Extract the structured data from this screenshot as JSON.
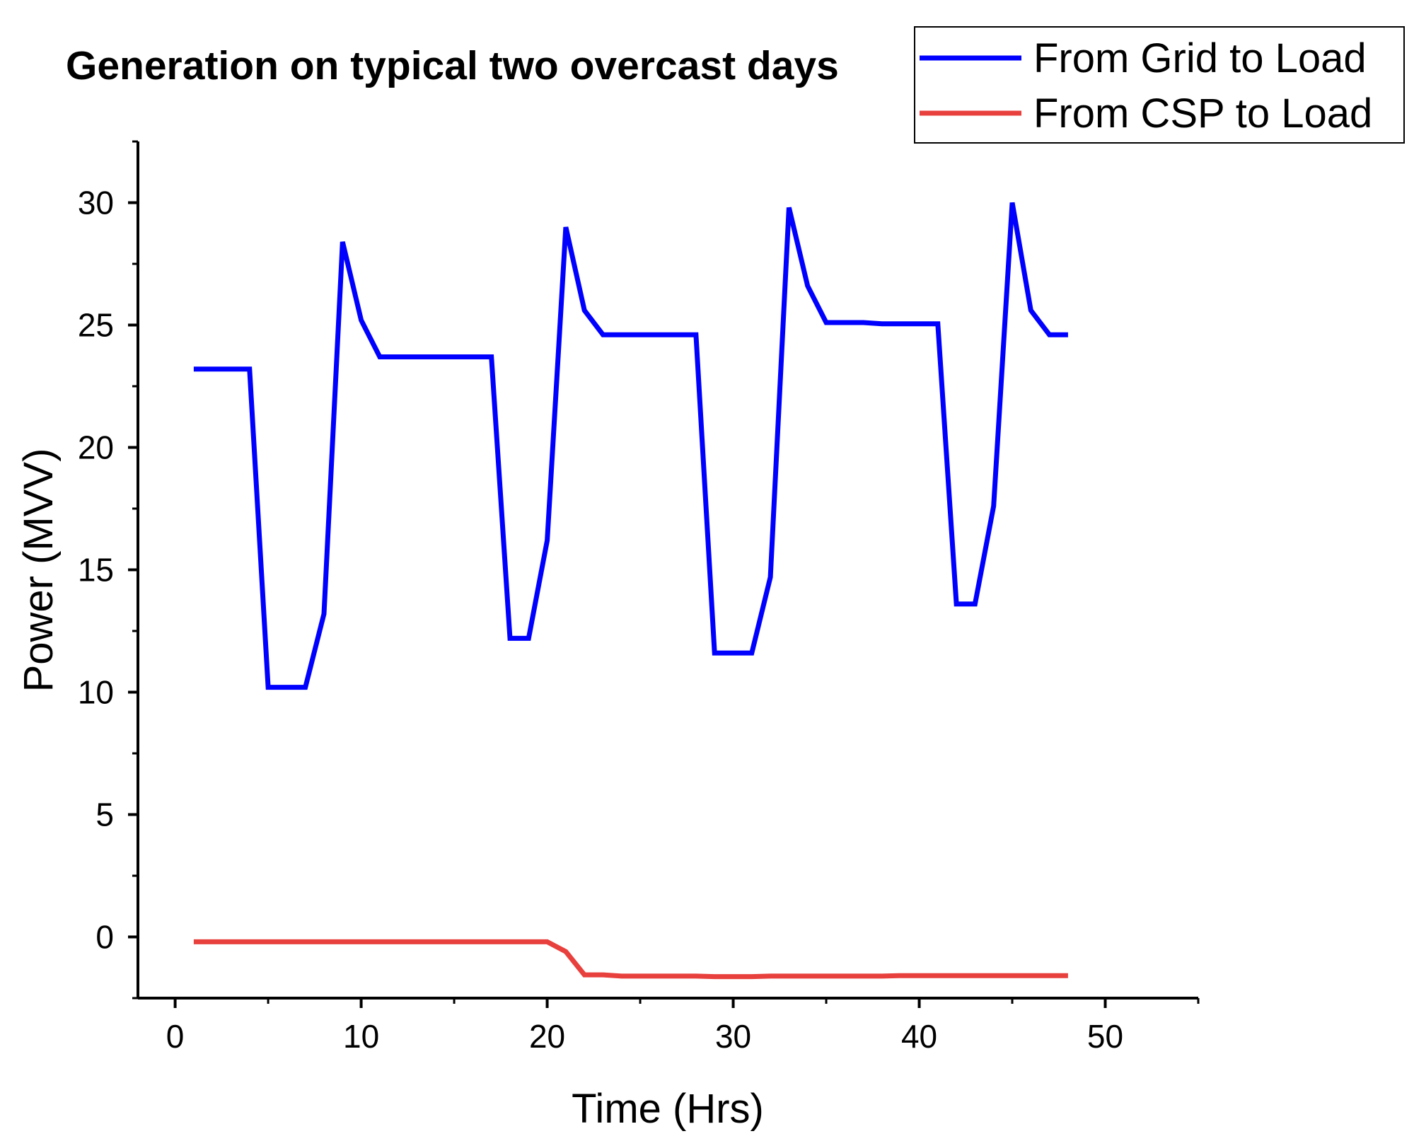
{
  "chart_data": {
    "type": "line",
    "title": "Generation on typical two overcast days",
    "xlabel": "Time (Hrs)",
    "ylabel": "Power (MVV)",
    "xlim": [
      -2,
      55
    ],
    "ylim": [
      -2.5,
      32.5
    ],
    "xticks": [
      0,
      10,
      20,
      30,
      40,
      50
    ],
    "yticks": [
      0,
      5,
      10,
      15,
      20,
      25,
      30
    ],
    "legend_position": "top-right",
    "series": [
      {
        "name": "From Grid to Load",
        "color": "#0000ff",
        "x": [
          1,
          2,
          3,
          4,
          5,
          6,
          7,
          8,
          9,
          10,
          11,
          12,
          13,
          14,
          15,
          16,
          17,
          18,
          19,
          20,
          21,
          22,
          23,
          24,
          25,
          26,
          27,
          28,
          29,
          30,
          31,
          32,
          33,
          34,
          35,
          36,
          37,
          38,
          39,
          40,
          41,
          42,
          43,
          44,
          45,
          46,
          47,
          48
        ],
        "values": [
          23.2,
          23.2,
          23.2,
          23.2,
          10.2,
          10.2,
          10.2,
          13.2,
          28.4,
          25.2,
          23.7,
          23.7,
          23.7,
          23.7,
          23.7,
          23.7,
          23.7,
          12.2,
          12.2,
          16.2,
          29.0,
          25.6,
          24.6,
          24.6,
          24.6,
          24.6,
          24.6,
          24.6,
          11.6,
          11.6,
          11.6,
          14.7,
          29.8,
          26.6,
          25.1,
          25.1,
          25.1,
          25.05,
          25.05,
          25.05,
          25.05,
          13.6,
          13.6,
          17.6,
          30.0,
          25.6,
          24.6,
          24.6
        ]
      },
      {
        "name": "From CSP to Load",
        "color": "#e8403c",
        "x": [
          1,
          2,
          3,
          4,
          5,
          6,
          7,
          8,
          9,
          10,
          11,
          12,
          13,
          14,
          15,
          16,
          17,
          18,
          19,
          20,
          21,
          22,
          23,
          24,
          25,
          26,
          27,
          28,
          29,
          30,
          31,
          32,
          33,
          34,
          35,
          36,
          37,
          38,
          39,
          40,
          41,
          42,
          43,
          44,
          45,
          46,
          47,
          48
        ],
        "values": [
          -0.2,
          -0.2,
          -0.2,
          -0.2,
          -0.2,
          -0.2,
          -0.2,
          -0.2,
          -0.2,
          -0.2,
          -0.2,
          -0.2,
          -0.2,
          -0.2,
          -0.2,
          -0.2,
          -0.2,
          -0.2,
          -0.2,
          -0.2,
          -0.6,
          -1.55,
          -1.55,
          -1.6,
          -1.6,
          -1.6,
          -1.6,
          -1.6,
          -1.62,
          -1.62,
          -1.62,
          -1.6,
          -1.6,
          -1.6,
          -1.6,
          -1.6,
          -1.6,
          -1.6,
          -1.58,
          -1.58,
          -1.58,
          -1.58,
          -1.58,
          -1.58,
          -1.58,
          -1.58,
          -1.58,
          -1.58
        ]
      }
    ]
  }
}
